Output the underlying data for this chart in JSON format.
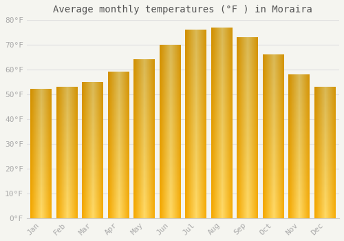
{
  "title": "Average monthly temperatures (°F ) in Moraira",
  "months": [
    "Jan",
    "Feb",
    "Mar",
    "Apr",
    "May",
    "Jun",
    "Jul",
    "Aug",
    "Sep",
    "Oct",
    "Nov",
    "Dec"
  ],
  "values": [
    52,
    53,
    55,
    59,
    64,
    70,
    76,
    77,
    73,
    66,
    58,
    53
  ],
  "bar_color_dark": "#F5A800",
  "bar_color_light": "#FFD966",
  "ylim": [
    0,
    80
  ],
  "yticks": [
    0,
    10,
    20,
    30,
    40,
    50,
    60,
    70,
    80
  ],
  "ytick_labels": [
    "0°F",
    "10°F",
    "20°F",
    "30°F",
    "40°F",
    "50°F",
    "60°F",
    "70°F",
    "80°F"
  ],
  "background_color": "#f5f5f0",
  "grid_color": "#e0e0e0",
  "title_fontsize": 10,
  "tick_fontsize": 8,
  "tick_color": "#aaaaaa"
}
